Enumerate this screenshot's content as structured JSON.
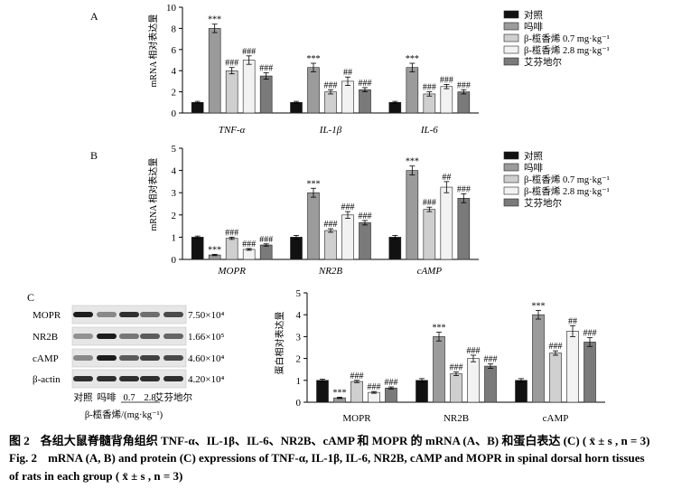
{
  "panels": [
    {
      "letter": "A"
    },
    {
      "letter": "B"
    },
    {
      "letter": "C"
    }
  ],
  "legend": [
    "对照",
    "吗啡",
    "β-榄香烯 0.7 mg·kg⁻¹",
    "β-榄香烯 2.8 mg·kg⁻¹",
    "艾芬地尔"
  ],
  "colors": [
    "#111111",
    "#9b9b9b",
    "#cfcfcf",
    "#f2f2f2",
    "#7a7a7a"
  ],
  "blot": {
    "rows": [
      {
        "name": "MOPR",
        "mw": "7.50×10⁴"
      },
      {
        "name": "NR2B",
        "mw": "1.66×10⁵"
      },
      {
        "name": "cAMP",
        "mw": "4.60×10⁴"
      },
      {
        "name": "β-actin",
        "mw": "4.20×10⁴"
      }
    ],
    "lanes": [
      "对照",
      "吗啡",
      "0.7",
      "2.8",
      "艾芬地尔"
    ],
    "dose_label": "β-榄香烯/(mg·kg⁻¹)"
  },
  "chart_data": [
    {
      "panel": "A",
      "type": "bar",
      "ylabel": "mRNA 相对表达量",
      "ylim": [
        0,
        10
      ],
      "yticks": [
        0,
        2,
        4,
        6,
        8,
        10
      ],
      "categories": [
        "TNF-α",
        "IL-1β",
        "IL-6"
      ],
      "series": [
        {
          "name": "对照",
          "values": [
            1.0,
            1.0,
            1.0
          ],
          "errors": [
            0.1,
            0.1,
            0.1
          ],
          "sig": [
            "",
            "",
            ""
          ]
        },
        {
          "name": "吗啡",
          "values": [
            8.0,
            4.3,
            4.3
          ],
          "errors": [
            0.4,
            0.4,
            0.4
          ],
          "sig": [
            "***",
            "***",
            "***"
          ]
        },
        {
          "name": "β-榄香烯 0.7 mg·kg⁻¹",
          "values": [
            4.0,
            2.0,
            1.8
          ],
          "errors": [
            0.3,
            0.2,
            0.2
          ],
          "sig": [
            "###",
            "###",
            "###"
          ]
        },
        {
          "name": "β-榄香烯 2.8 mg·kg⁻¹",
          "values": [
            5.0,
            3.0,
            2.5
          ],
          "errors": [
            0.4,
            0.4,
            0.2
          ],
          "sig": [
            "###",
            "##",
            "###"
          ]
        },
        {
          "name": "艾芬地尔",
          "values": [
            3.5,
            2.2,
            2.0
          ],
          "errors": [
            0.3,
            0.2,
            0.2
          ],
          "sig": [
            "###",
            "###",
            "###"
          ]
        }
      ]
    },
    {
      "panel": "B",
      "type": "bar",
      "ylabel": "mRNA 相对表达量",
      "ylim": [
        0,
        5
      ],
      "yticks": [
        0,
        1,
        2,
        3,
        4,
        5
      ],
      "categories": [
        "MOPR",
        "NR2B",
        "cAMP"
      ],
      "series": [
        {
          "name": "对照",
          "values": [
            1.0,
            1.0,
            1.0
          ],
          "errors": [
            0.05,
            0.08,
            0.08
          ],
          "sig": [
            "",
            "",
            ""
          ]
        },
        {
          "name": "吗啡",
          "values": [
            0.2,
            3.0,
            4.0
          ],
          "errors": [
            0.03,
            0.2,
            0.2
          ],
          "sig": [
            "***",
            "***",
            "***"
          ]
        },
        {
          "name": "β-榄香烯 0.7 mg·kg⁻¹",
          "values": [
            0.95,
            1.3,
            2.25
          ],
          "errors": [
            0.05,
            0.08,
            0.1
          ],
          "sig": [
            "###",
            "###",
            "###"
          ]
        },
        {
          "name": "β-榄香烯 2.8 mg·kg⁻¹",
          "values": [
            0.45,
            2.0,
            3.25
          ],
          "errors": [
            0.04,
            0.15,
            0.25
          ],
          "sig": [
            "###",
            "###",
            "##"
          ]
        },
        {
          "name": "艾芬地尔",
          "values": [
            0.65,
            1.65,
            2.75
          ],
          "errors": [
            0.05,
            0.1,
            0.2
          ],
          "sig": [
            "###",
            "###",
            "###"
          ]
        }
      ]
    },
    {
      "panel": "C",
      "type": "bar",
      "ylabel": "蛋白相对表达量",
      "ylim": [
        0,
        5
      ],
      "yticks": [
        0,
        1,
        2,
        3,
        4,
        5
      ],
      "categories": [
        "MOPR",
        "NR2B",
        "cAMP"
      ],
      "series": [
        {
          "name": "对照",
          "values": [
            1.0,
            1.0,
            1.0
          ],
          "errors": [
            0.05,
            0.08,
            0.08
          ],
          "sig": [
            "",
            "",
            ""
          ]
        },
        {
          "name": "吗啡",
          "values": [
            0.2,
            3.0,
            4.0
          ],
          "errors": [
            0.03,
            0.2,
            0.2
          ],
          "sig": [
            "***",
            "***",
            "***"
          ]
        },
        {
          "name": "β-榄香烯 0.7 mg·kg⁻¹",
          "values": [
            0.95,
            1.3,
            2.25
          ],
          "errors": [
            0.05,
            0.08,
            0.1
          ],
          "sig": [
            "###",
            "###",
            "###"
          ]
        },
        {
          "name": "β-榄香烯 2.8 mg·kg⁻¹",
          "values": [
            0.45,
            2.0,
            3.25
          ],
          "errors": [
            0.04,
            0.15,
            0.25
          ],
          "sig": [
            "###",
            "###",
            "##"
          ]
        },
        {
          "name": "艾芬地尔",
          "values": [
            0.65,
            1.65,
            2.75
          ],
          "errors": [
            0.05,
            0.1,
            0.2
          ],
          "sig": [
            "###",
            "###",
            "###"
          ]
        }
      ]
    }
  ],
  "caption": {
    "cn_num": "图 2",
    "cn_text": "各组大鼠脊髓背角组织 TNF-α、IL-1β、IL-6、NR2B、cAMP 和 MOPR 的 mRNA (A、B) 和蛋白表达 (C) ( x̄ ± s , n = 3)",
    "en_num": "Fig. 2",
    "en_text": "mRNA (A, B) and protein (C) expressions of TNF-α, IL-1β, IL-6, NR2B, cAMP and MOPR in spinal dorsal horn tissues",
    "en_text2": "of rats in each group ( x̄ ± s , n = 3)"
  }
}
